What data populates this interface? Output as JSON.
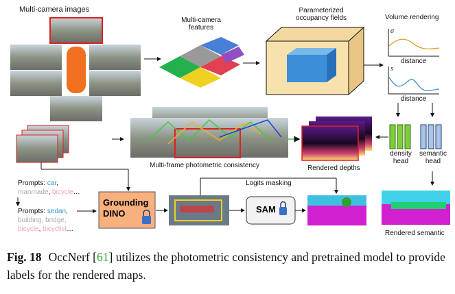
{
  "labels": {
    "multi_camera_images": "Multi-camera images",
    "multi_camera_features": "Multi-camera features",
    "occupancy_fields": "Parameterized occupancy fields",
    "volume_rendering": "Volume rendering",
    "sigma": "σ",
    "s": "s",
    "distance": "distance",
    "density_head": "density head",
    "semantic_head": "semantic head",
    "photometric": "Multi-frame photometric consistency",
    "rendered_depths": "Rendered depths",
    "logits_masking": "Logits masking",
    "grounding_dino": "Grounding DINO",
    "sam": "SAM",
    "rendered_semantic": "Rendered semantic"
  },
  "prompts1": {
    "prefix": "Prompts: ",
    "car": "car",
    "rest_gray": "manmade",
    "bicycle": "bicycle",
    "ellipsis": "…"
  },
  "prompts2": {
    "prefix": "Prompts: ",
    "sedan": "sedan",
    "gray": "building, bridge,",
    "pink1": "bicycle",
    "pink2": "bicyclist",
    "ellipsis": "…"
  },
  "caption": {
    "fig": "Fig. 18",
    "pre": "OccNerf [",
    "ref": "61",
    "post": "] utilizes the photometric consistency and pretrained model to provide labels for the rendered maps."
  },
  "colors": {
    "accent_red": "#e02020",
    "dino": "#f9b07f",
    "density_head": "#7fcf3a",
    "semantic_head": "#a9c4e8",
    "ref_green": "#2db32d"
  }
}
